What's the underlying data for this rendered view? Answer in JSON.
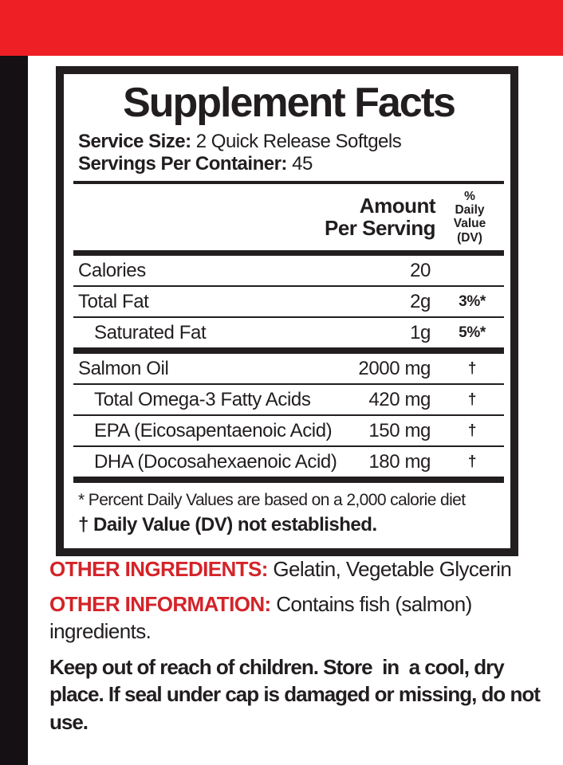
{
  "colors": {
    "banner_red": "#ee2026",
    "label_red": "#d42329",
    "print_black": "#221e20",
    "strip_black": "#141013"
  },
  "panel": {
    "title": "Supplement Facts",
    "serving_size_label": "Service Size:",
    "serving_size_value": "2 Quick Release Softgels",
    "servings_label": "Servings Per Container:",
    "servings_value": "45",
    "amount_header": [
      "Amount",
      "Per Serving"
    ],
    "dv_header": [
      "%",
      "Daily",
      "Value",
      "(DV)"
    ],
    "rows": [
      {
        "name": "Calories",
        "amount": "20",
        "dv": "",
        "indent": false,
        "sep": "thin"
      },
      {
        "name": "Total Fat",
        "amount": "2g",
        "dv": "3%*",
        "indent": false,
        "sep": "thin"
      },
      {
        "name": "Saturated Fat",
        "amount": "1g",
        "dv": "5%*",
        "indent": true,
        "sep": "thick"
      },
      {
        "name": "Salmon Oil",
        "amount": "2000 mg",
        "dv": "†",
        "indent": false,
        "sep": "thin"
      },
      {
        "name": "Total Omega-3 Fatty Acids",
        "amount": "420 mg",
        "dv": "†",
        "indent": true,
        "sep": "thin"
      },
      {
        "name": "EPA (Eicosapentaenoic Acid)",
        "amount": "150 mg",
        "dv": "†",
        "indent": true,
        "sep": "thin"
      },
      {
        "name": "DHA (Docosahexaenoic Acid)",
        "amount": "180 mg",
        "dv": "†",
        "indent": true,
        "sep": "thick"
      }
    ],
    "footnote_percent": "* Percent Daily Values are based on a 2,000 calorie diet",
    "footnote_dagger": "† Daily Value (DV) not established."
  },
  "other": {
    "ingredients_label": "OTHER INGREDIENTS:",
    "ingredients_value": "Gelatin, Vegetable Glycerin",
    "information_label": "OTHER INFORMATION:",
    "information_value": "Contains fish (salmon) ingredients.",
    "warning": "Keep out of reach of children. Store  in  a cool, dry place. If seal under cap is damaged or missing, do not use."
  }
}
